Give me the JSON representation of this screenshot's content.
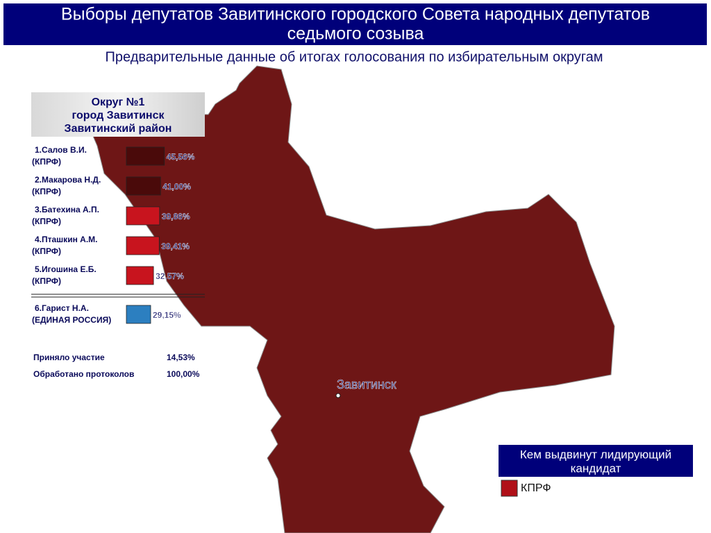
{
  "header": {
    "title_lines": [
      "Выборы депутатов Завитинского городского Совета народных депутатов",
      "седьмого созыва"
    ],
    "subtitle": "Предварительные данные об итогах голосования по избирательным округам"
  },
  "district": {
    "title_lines": [
      "Округ №1",
      "город Завитинск",
      "Завитинский район"
    ]
  },
  "candidates": [
    {
      "name": "1.Салов В.И.",
      "party": "(КПРФ)",
      "value": 45.56,
      "value_label": "45,56%",
      "color": "#4a0a0a"
    },
    {
      "name": "2.Макарова Н.Д.",
      "party": "(КПРФ)",
      "value": 41.0,
      "value_label": "41,00%",
      "color": "#4a0a0a"
    },
    {
      "name": "3.Батехина А.П.",
      "party": "(КПРФ)",
      "value": 39.86,
      "value_label": "39,86%",
      "color": "#c8141e"
    },
    {
      "name": "4.Пташкин А.М.",
      "party": "(КПРФ)",
      "value": 39.41,
      "value_label": "39,41%",
      "color": "#c8141e"
    },
    {
      "name": "5.Игошина Е.Б.",
      "party": "(КПРФ)",
      "value": 32.57,
      "value_label": "32,57%",
      "color": "#c8141e"
    },
    {
      "name": "6.Гарист Н.А.",
      "party": "(ЕДИНАЯ РОССИЯ)",
      "value": 29.15,
      "value_label": "29,15%",
      "color": "#2c7fc0"
    }
  ],
  "stats": [
    {
      "label": "Приняло участие",
      "value": "14,53%"
    },
    {
      "label": "Обработано протоколов",
      "value": "100,00%"
    }
  ],
  "map": {
    "city": "Завитинск",
    "color": "#6e1616"
  },
  "legend": {
    "title_lines": [
      "Кем выдвинут лидирующий",
      "кандидат"
    ],
    "items": [
      {
        "label": "КПРФ",
        "color": "#b01018"
      }
    ]
  }
}
